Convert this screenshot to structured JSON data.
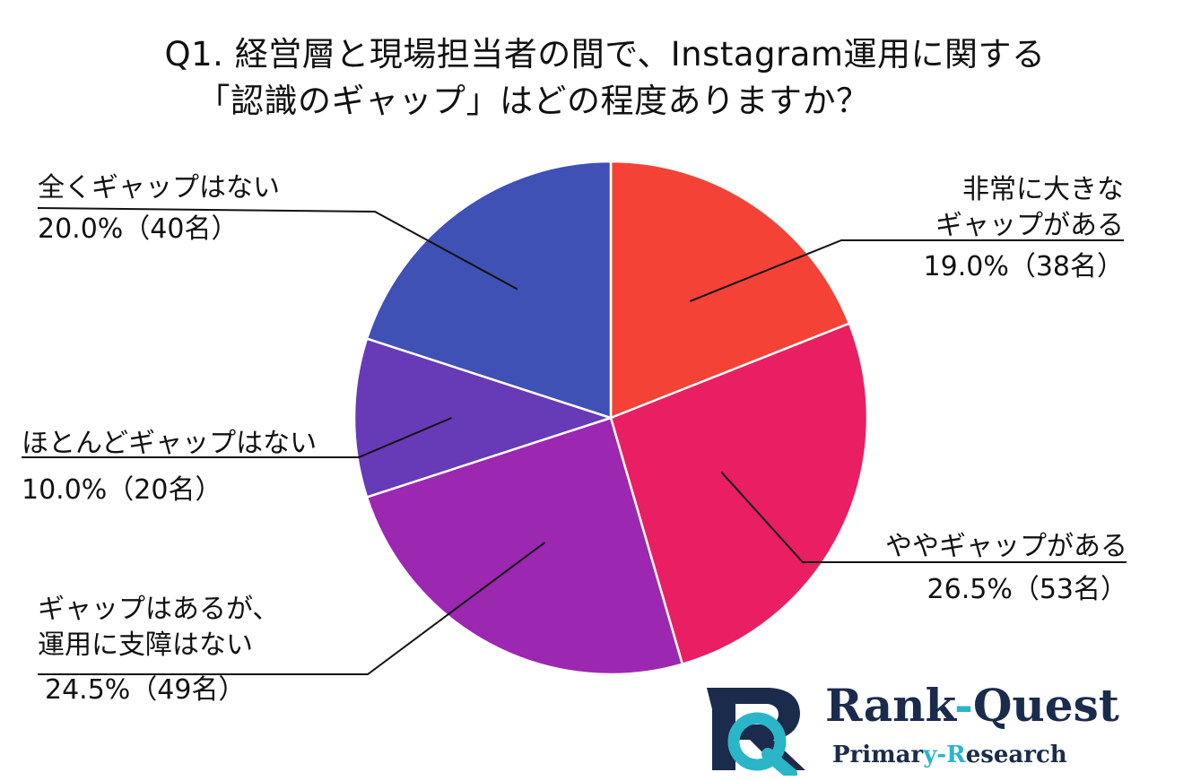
{
  "title_line1": "Q1. 経営層と現場担当者の間で、Instagram運用に関する",
  "title_line2": "「認識のギャップ」はどの程度ありますか？",
  "chart_data": {
    "type": "pie",
    "title": "Q1. 経営層と現場担当者の間で、Instagram運用に関する「認識のギャップ」はどの程度ありますか？",
    "slices": [
      {
        "label_lines": [
          "非常に大きな",
          "ギャップがある"
        ],
        "value": 19.0,
        "count_text": "19.0%（38名）",
        "color": "#f44236"
      },
      {
        "label_lines": [
          "ややギャップがある"
        ],
        "value": 26.5,
        "count_text": "26.5%（53名）",
        "color": "#e91e63"
      },
      {
        "label_lines": [
          "ギャップはあるが、",
          "運用に支障はない"
        ],
        "value": 24.5,
        "count_text": "24.5%（49名）",
        "color": "#9c27b0"
      },
      {
        "label_lines": [
          "ほとんどギャップはない"
        ],
        "value": 10.0,
        "count_text": "10.0%（20名）",
        "color": "#673ab7"
      },
      {
        "label_lines": [
          "全くギャップはない"
        ],
        "value": 20.0,
        "count_text": "20.0%（40名）",
        "color": "#3f51b5"
      }
    ]
  },
  "logo": {
    "mark_letters": "RQ",
    "name_part1": "Rank",
    "name_dash": "-",
    "name_part2": "Quest",
    "sub_part1": "Primar",
    "sub_y": "y",
    "sub_dash": "-",
    "sub_r": "R",
    "sub_part2": "esearch",
    "color_dark": "#1b2b4b",
    "color_accent": "#2bb5c8"
  }
}
